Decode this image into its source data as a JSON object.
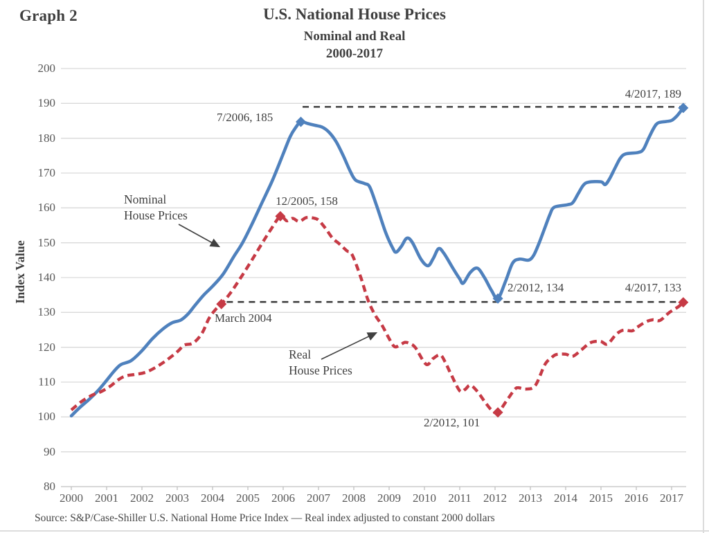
{
  "header": {
    "graph_label": "Graph 2",
    "title": "U.S. National House Prices",
    "subtitle1": "Nominal and Real",
    "subtitle2": "2000-2017"
  },
  "y_axis": {
    "title": "Index Value",
    "ticks": [
      200,
      190,
      180,
      170,
      160,
      150,
      140,
      130,
      120,
      110,
      100,
      90,
      80
    ]
  },
  "x_axis": {
    "ticks": [
      2000,
      2001,
      2002,
      2003,
      2004,
      2005,
      2006,
      2007,
      2008,
      2009,
      2010,
      2011,
      2012,
      2013,
      2014,
      2015,
      2016,
      2017
    ]
  },
  "source": "Source: S&P/Case-Shiller U.S. National Home Price Index — Real index adjusted to constant 2000 dollars",
  "colors": {
    "nominal": "#4f81bd",
    "real": "#c63a45",
    "reference": "#404040",
    "grid": "#d9d9d9",
    "axis": "#c0c0c0",
    "title_text": "#3f3f3f",
    "tick_text": "#595959"
  },
  "annotations": {
    "nominal_peak": "7/2006, 185",
    "nominal_trough": "2/2012, 134",
    "nominal_end": "4/2017, 189",
    "real_march_2004": "March 2004",
    "real_peak": "12/2005, 158",
    "real_trough": "2/2012, 101",
    "real_end": "4/2017, 133",
    "nominal_label_line1": "Nominal",
    "nominal_label_line2": "House Prices",
    "real_label_line1": "Real",
    "real_label_line2": "House Prices"
  },
  "chart_data": {
    "type": "line",
    "title": "U.S. National House Prices",
    "xlabel": "",
    "ylabel": "Index Value",
    "xlim": [
      2000,
      2017.45
    ],
    "ylim": [
      80,
      200
    ],
    "grid": true,
    "series": [
      {
        "name": "Nominal House Prices",
        "style": "solid",
        "color_key": "nominal",
        "points": [
          [
            2000.0,
            100.3
          ],
          [
            2000.25,
            102.8
          ],
          [
            2000.5,
            105
          ],
          [
            2000.75,
            107.5
          ],
          [
            2001.0,
            110.5
          ],
          [
            2001.2,
            113
          ],
          [
            2001.4,
            115
          ],
          [
            2001.7,
            116.2
          ],
          [
            2002.0,
            119
          ],
          [
            2002.3,
            122.5
          ],
          [
            2002.6,
            125.3
          ],
          [
            2002.85,
            127
          ],
          [
            2003.1,
            127.8
          ],
          [
            2003.3,
            129.5
          ],
          [
            2003.5,
            132
          ],
          [
            2003.75,
            135
          ],
          [
            2004.0,
            137.5
          ],
          [
            2004.3,
            141
          ],
          [
            2004.6,
            146
          ],
          [
            2004.85,
            150
          ],
          [
            2005.1,
            155
          ],
          [
            2005.4,
            161.5
          ],
          [
            2005.7,
            168
          ],
          [
            2006.0,
            175.5
          ],
          [
            2006.2,
            180.5
          ],
          [
            2006.35,
            183
          ],
          [
            2006.5,
            184.7
          ],
          [
            2006.7,
            184.2
          ],
          [
            2006.9,
            183.7
          ],
          [
            2007.1,
            183.2
          ],
          [
            2007.3,
            181.7
          ],
          [
            2007.5,
            179
          ],
          [
            2007.7,
            175
          ],
          [
            2007.9,
            170.5
          ],
          [
            2008.05,
            168
          ],
          [
            2008.3,
            167
          ],
          [
            2008.45,
            166
          ],
          [
            2008.65,
            160.5
          ],
          [
            2008.9,
            153
          ],
          [
            2009.1,
            148.5
          ],
          [
            2009.2,
            147.3
          ],
          [
            2009.35,
            149
          ],
          [
            2009.5,
            151.3
          ],
          [
            2009.65,
            150.2
          ],
          [
            2009.9,
            145.3
          ],
          [
            2010.1,
            143.4
          ],
          [
            2010.25,
            145.5
          ],
          [
            2010.4,
            148.3
          ],
          [
            2010.55,
            147
          ],
          [
            2010.8,
            142.8
          ],
          [
            2011.0,
            139.6
          ],
          [
            2011.1,
            138.4
          ],
          [
            2011.3,
            141.5
          ],
          [
            2011.5,
            142.7
          ],
          [
            2011.7,
            140
          ],
          [
            2011.9,
            136.3
          ],
          [
            2012.08,
            134
          ],
          [
            2012.3,
            139
          ],
          [
            2012.5,
            144.2
          ],
          [
            2012.7,
            145.3
          ],
          [
            2012.95,
            145
          ],
          [
            2013.1,
            146.5
          ],
          [
            2013.25,
            150
          ],
          [
            2013.4,
            154
          ],
          [
            2013.55,
            158
          ],
          [
            2013.68,
            160.2
          ],
          [
            2014.05,
            160.9
          ],
          [
            2014.2,
            161.5
          ],
          [
            2014.35,
            164
          ],
          [
            2014.5,
            166.5
          ],
          [
            2014.65,
            167.4
          ],
          [
            2015.0,
            167.5
          ],
          [
            2015.12,
            166.7
          ],
          [
            2015.25,
            168.5
          ],
          [
            2015.4,
            171.5
          ],
          [
            2015.55,
            174.3
          ],
          [
            2015.7,
            175.5
          ],
          [
            2016.05,
            175.9
          ],
          [
            2016.2,
            176.8
          ],
          [
            2016.35,
            180
          ],
          [
            2016.5,
            183
          ],
          [
            2016.62,
            184.4
          ],
          [
            2016.85,
            184.8
          ],
          [
            2017.0,
            185.1
          ],
          [
            2017.15,
            186.4
          ],
          [
            2017.33,
            188.7
          ]
        ]
      },
      {
        "name": "Real House Prices",
        "style": "dashed",
        "color_key": "real",
        "points": [
          [
            2000.0,
            102
          ],
          [
            2000.3,
            104.5
          ],
          [
            2000.6,
            106.3
          ],
          [
            2000.85,
            107.3
          ],
          [
            2001.1,
            108.8
          ],
          [
            2001.35,
            110.8
          ],
          [
            2001.55,
            111.8
          ],
          [
            2001.8,
            112.2
          ],
          [
            2002.1,
            112.8
          ],
          [
            2002.4,
            114.3
          ],
          [
            2002.7,
            116.3
          ],
          [
            2003.0,
            118.7
          ],
          [
            2003.2,
            120.6
          ],
          [
            2003.45,
            121.2
          ],
          [
            2003.7,
            124
          ],
          [
            2003.9,
            128.3
          ],
          [
            2004.1,
            131
          ],
          [
            2004.25,
            132.4
          ],
          [
            2004.5,
            135.5
          ],
          [
            2004.8,
            140
          ],
          [
            2005.1,
            144.8
          ],
          [
            2005.4,
            149.8
          ],
          [
            2005.65,
            153.8
          ],
          [
            2005.92,
            157.6
          ],
          [
            2006.1,
            156.3
          ],
          [
            2006.27,
            157
          ],
          [
            2006.45,
            156.1
          ],
          [
            2006.65,
            157.2
          ],
          [
            2006.85,
            157.1
          ],
          [
            2007.0,
            156.5
          ],
          [
            2007.2,
            154.1
          ],
          [
            2007.4,
            151.3
          ],
          [
            2007.6,
            149.6
          ],
          [
            2007.8,
            147.7
          ],
          [
            2007.95,
            146.6
          ],
          [
            2008.2,
            140
          ],
          [
            2008.4,
            133.6
          ],
          [
            2008.6,
            129.3
          ],
          [
            2008.8,
            126.3
          ],
          [
            2009.0,
            122.5
          ],
          [
            2009.15,
            120.2
          ],
          [
            2009.3,
            120.6
          ],
          [
            2009.45,
            121.4
          ],
          [
            2009.6,
            121
          ],
          [
            2009.75,
            119.8
          ],
          [
            2010.05,
            115.1
          ],
          [
            2010.25,
            116.8
          ],
          [
            2010.45,
            117.8
          ],
          [
            2010.6,
            115.5
          ],
          [
            2010.75,
            112.3
          ],
          [
            2011.0,
            107.5
          ],
          [
            2011.15,
            107.9
          ],
          [
            2011.3,
            109.1
          ],
          [
            2011.5,
            107.3
          ],
          [
            2011.7,
            104.5
          ],
          [
            2011.9,
            102
          ],
          [
            2012.08,
            101.3
          ],
          [
            2012.35,
            105
          ],
          [
            2012.55,
            107.8
          ],
          [
            2012.65,
            108.4
          ],
          [
            2012.88,
            108
          ],
          [
            2013.14,
            109
          ],
          [
            2013.41,
            115
          ],
          [
            2013.6,
            117
          ],
          [
            2013.73,
            117.9
          ],
          [
            2014.0,
            118
          ],
          [
            2014.2,
            117.4
          ],
          [
            2014.45,
            119.3
          ],
          [
            2014.7,
            121.3
          ],
          [
            2014.98,
            121.7
          ],
          [
            2015.18,
            120.9
          ],
          [
            2015.43,
            123.7
          ],
          [
            2015.63,
            124.9
          ],
          [
            2015.88,
            124.7
          ],
          [
            2016.02,
            125.7
          ],
          [
            2016.27,
            127.3
          ],
          [
            2016.47,
            127.9
          ],
          [
            2016.67,
            127.7
          ],
          [
            2016.94,
            130
          ],
          [
            2017.2,
            131.7
          ],
          [
            2017.33,
            132.9
          ]
        ]
      }
    ],
    "markers": [
      {
        "series": "nominal",
        "x": 2006.5,
        "y": 184.7,
        "label": "7/2006, 185"
      },
      {
        "series": "nominal",
        "x": 2012.08,
        "y": 134,
        "label": "2/2012, 134"
      },
      {
        "series": "nominal",
        "x": 2017.33,
        "y": 188.7,
        "label": "4/2017, 189"
      },
      {
        "series": "real",
        "x": 2004.25,
        "y": 132.4,
        "label": "March 2004"
      },
      {
        "series": "real",
        "x": 2005.92,
        "y": 157.6,
        "label": "12/2005, 158"
      },
      {
        "series": "real",
        "x": 2012.08,
        "y": 101.3,
        "label": "2/2012, 101"
      },
      {
        "series": "real",
        "x": 2017.33,
        "y": 132.9,
        "label": "4/2017, 133"
      }
    ],
    "reference_lines": [
      {
        "value": 189,
        "x_start": 2006.55,
        "x_end": 2017.28
      },
      {
        "value": 133,
        "x_start": 2004.4,
        "x_end": 2017.28
      }
    ]
  }
}
